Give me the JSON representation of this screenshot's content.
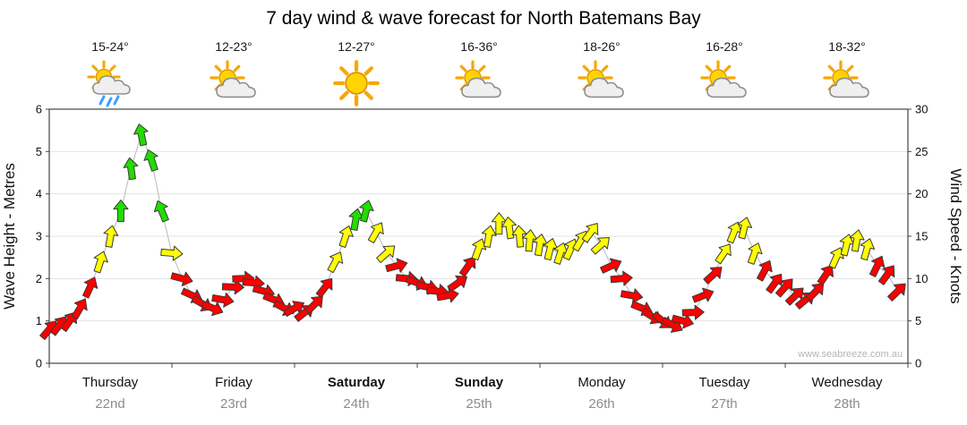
{
  "title": "7 day wind & wave forecast for North Batemans Bay",
  "watermark": "www.seabreeze.com.au",
  "days": [
    {
      "name": "Thursday",
      "date": "22nd",
      "temp": "15-24°",
      "icon": "showers",
      "bold": false
    },
    {
      "name": "Friday",
      "date": "23rd",
      "temp": "12-23°",
      "icon": "partly-cloudy",
      "bold": false
    },
    {
      "name": "Saturday",
      "date": "24th",
      "temp": "12-27°",
      "icon": "sunny",
      "bold": true
    },
    {
      "name": "Sunday",
      "date": "25th",
      "temp": "16-36°",
      "icon": "partly-cloudy",
      "bold": true
    },
    {
      "name": "Monday",
      "date": "26th",
      "temp": "18-26°",
      "icon": "partly-cloudy",
      "bold": false
    },
    {
      "name": "Tuesday",
      "date": "27th",
      "temp": "16-28°",
      "icon": "partly-cloudy",
      "bold": false
    },
    {
      "name": "Wednesday",
      "date": "28th",
      "temp": "18-32°",
      "icon": "partly-cloudy",
      "bold": false
    }
  ],
  "chart_data": {
    "type": "scatter",
    "marker": "wind-arrow",
    "title": "7 day wind & wave forecast for North Batemans Bay",
    "x": {
      "days": [
        "Thursday",
        "Friday",
        "Saturday",
        "Sunday",
        "Monday",
        "Tuesday",
        "Wednesday"
      ],
      "hours_per_day": 24,
      "sample_hours": [
        0,
        2,
        4,
        6,
        8,
        10,
        12,
        14,
        16,
        18,
        20,
        22
      ]
    },
    "y_left": {
      "label": "Wave Height - Metres",
      "min": 0,
      "max": 6,
      "ticks": [
        0,
        1,
        2,
        3,
        4,
        5,
        6
      ]
    },
    "y_right": {
      "label": "Wind Speed - Knots",
      "min": 0,
      "max": 30,
      "ticks": [
        0,
        5,
        10,
        15,
        20,
        25,
        30
      ]
    },
    "colors": {
      "light": "#ff0000",
      "moderate": "#ffff00",
      "fresh": "#22dd00",
      "line": "#b8b8b8",
      "moderate_min_kn": 12,
      "fresh_min_kn": 17
    },
    "series": [
      {
        "day": "Thursday",
        "knots": [
          4,
          4.5,
          5,
          6.5,
          9,
          12,
          15,
          18,
          23,
          27,
          24,
          18
        ],
        "dir_deg": [
          40,
          38,
          35,
          30,
          25,
          18,
          10,
          0,
          -8,
          -12,
          -18,
          -22
        ]
      },
      {
        "day": "Friday",
        "knots": [
          13,
          10,
          8,
          7,
          6.5,
          7.5,
          9,
          10,
          9.5,
          8.5,
          7.5,
          6.5
        ],
        "dir_deg": [
          95,
          105,
          115,
          120,
          112,
          100,
          92,
          88,
          95,
          105,
          112,
          118
        ]
      },
      {
        "day": "Saturday",
        "knots": [
          6.5,
          6,
          7,
          9,
          12,
          15,
          17,
          18,
          15.5,
          13,
          11.5,
          10
        ],
        "dir_deg": [
          60,
          52,
          45,
          38,
          28,
          18,
          10,
          14,
          30,
          48,
          75,
          95
        ]
      },
      {
        "day": "Sunday",
        "knots": [
          9.5,
          9,
          8.5,
          8,
          9.5,
          11.5,
          13.5,
          15,
          16.5,
          16,
          15,
          14.5
        ],
        "dir_deg": [
          110,
          102,
          95,
          80,
          55,
          35,
          20,
          10,
          0,
          -8,
          -5,
          5
        ]
      },
      {
        "day": "Monday",
        "knots": [
          14,
          13.5,
          13,
          13.5,
          14.5,
          15.5,
          14,
          11.5,
          10,
          8,
          6.5,
          5.5
        ],
        "dir_deg": [
          10,
          14,
          18,
          24,
          30,
          36,
          48,
          65,
          85,
          100,
          112,
          122
        ]
      },
      {
        "day": "Tuesday",
        "knots": [
          5,
          4.5,
          5,
          6,
          8,
          10.5,
          13,
          15.5,
          16,
          13,
          11,
          9.5
        ],
        "dir_deg": [
          128,
          118,
          105,
          88,
          68,
          48,
          34,
          22,
          14,
          20,
          28,
          36
        ]
      },
      {
        "day": "Wednesday",
        "knots": [
          9,
          8,
          7.5,
          8.5,
          10.5,
          12.5,
          14,
          14.5,
          13.5,
          11.5,
          10.5,
          8.5
        ],
        "dir_deg": [
          42,
          46,
          50,
          44,
          34,
          24,
          14,
          10,
          16,
          26,
          36,
          46
        ]
      }
    ]
  }
}
